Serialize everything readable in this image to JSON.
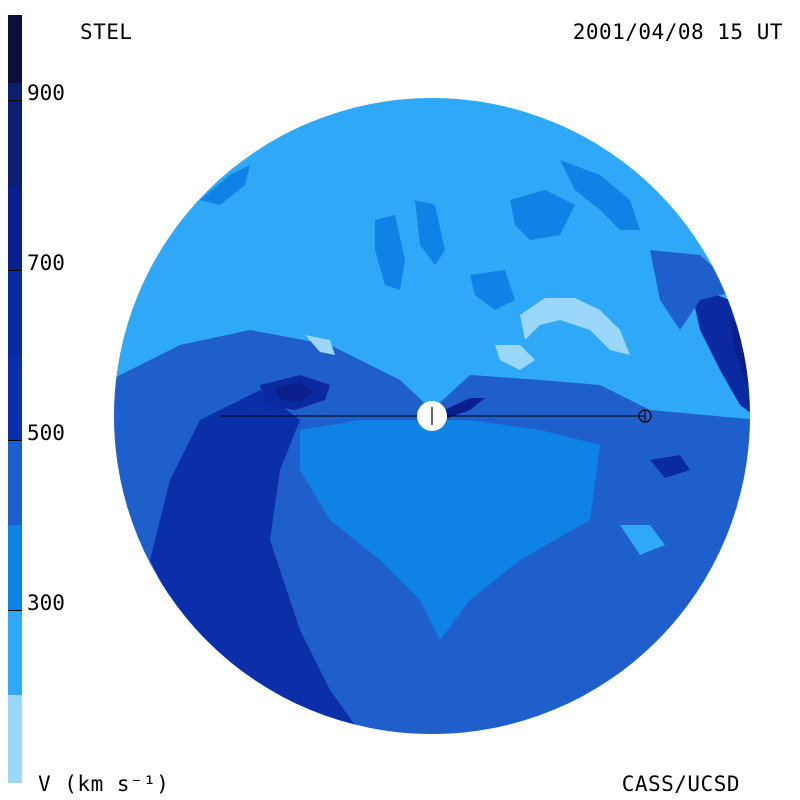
{
  "header": {
    "observatory": "STEL",
    "timestamp": "2001/04/08 15 UT"
  },
  "footer": {
    "credit": "CASS/UCSD",
    "colorbar_unit": "V (km s⁻¹)"
  },
  "colorbar": {
    "tick_labels": [
      "900",
      "700",
      "500",
      "300"
    ],
    "levels": [
      {
        "min": 950,
        "color": "#0a0f3c"
      },
      {
        "min": 850,
        "color": "#0c1f6e"
      },
      {
        "min": 750,
        "color": "#0a1f8c"
      },
      {
        "min": 650,
        "color": "#0b2aa2"
      },
      {
        "min": 550,
        "color": "#0b2ea9"
      },
      {
        "min": 450,
        "color": "#1f5fcc"
      },
      {
        "min": 350,
        "color": "#0f82e6"
      },
      {
        "min": 250,
        "color": "#2ea8f7"
      },
      {
        "min": 0,
        "color": "#9bd6fb"
      }
    ]
  },
  "map": {
    "parameter": "solar wind velocity",
    "background_color": "#2ea8f7",
    "markers": [
      "sun-marker",
      "earth-marker"
    ]
  }
}
